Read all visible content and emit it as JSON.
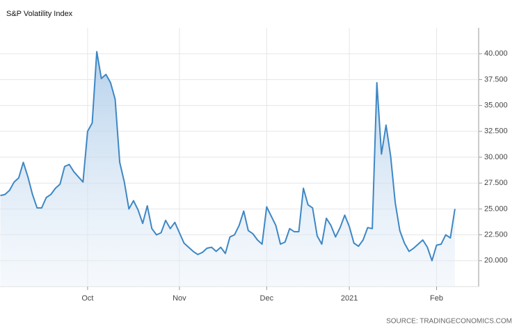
{
  "chart_data": {
    "type": "line",
    "title": "S&P Volatility Index",
    "source": "SOURCE: TRADINGECONOMICS.COM",
    "categories": [
      null,
      null,
      null,
      null,
      null,
      null,
      null,
      null,
      null,
      null,
      null,
      null,
      null,
      null,
      null,
      null,
      null,
      null,
      null,
      "Oct",
      null,
      null,
      null,
      null,
      null,
      null,
      null,
      null,
      null,
      null,
      null,
      null,
      null,
      null,
      null,
      null,
      null,
      null,
      null,
      "Nov",
      null,
      null,
      null,
      null,
      null,
      null,
      null,
      null,
      null,
      null,
      null,
      null,
      null,
      null,
      null,
      null,
      null,
      null,
      "Dec",
      null,
      null,
      null,
      null,
      null,
      null,
      null,
      null,
      null,
      null,
      null,
      null,
      null,
      null,
      null,
      null,
      null,
      "2021",
      null,
      null,
      null,
      null,
      null,
      null,
      null,
      null,
      null,
      null,
      null,
      null,
      null,
      null,
      null,
      null,
      null,
      null,
      "Feb",
      null,
      null,
      null,
      null
    ],
    "series": [
      {
        "color": "#3d87c4",
        "values": [
          26.3,
          26.4,
          26.8,
          27.6,
          28.0,
          29.5,
          28.1,
          26.4,
          25.1,
          25.1,
          26.1,
          26.4,
          27.0,
          27.4,
          29.1,
          29.3,
          28.6,
          28.1,
          27.6,
          32.5,
          33.3,
          40.2,
          37.6,
          38.0,
          37.2,
          35.6,
          29.5,
          27.6,
          25.0,
          25.8,
          24.9,
          23.6,
          25.3,
          23.1,
          22.5,
          22.7,
          23.9,
          23.1,
          23.7,
          22.7,
          21.7,
          21.3,
          20.9,
          20.6,
          20.8,
          21.2,
          21.3,
          20.9,
          21.3,
          20.7,
          22.3,
          22.5,
          23.4,
          24.8,
          22.9,
          22.6,
          22.0,
          21.6,
          25.2,
          24.3,
          23.4,
          21.6,
          21.8,
          23.1,
          22.8,
          22.8,
          27.0,
          25.4,
          25.1,
          22.4,
          21.6,
          24.1,
          23.4,
          22.3,
          23.2,
          24.4,
          23.3,
          21.7,
          21.4,
          22.0,
          23.2,
          23.1,
          37.2,
          30.3,
          33.1,
          30.1,
          25.6,
          22.9,
          21.7,
          20.9,
          21.2,
          21.6,
          22.0,
          21.3,
          20.0,
          21.5,
          21.6,
          22.5,
          22.2,
          25.0
        ]
      }
    ],
    "ylim": [
      17.5,
      42.5
    ],
    "yticks": [
      {
        "value": 20,
        "label": "20.000"
      },
      {
        "value": 22.5,
        "label": "22.500"
      },
      {
        "value": 25,
        "label": "25.000"
      },
      {
        "value": 27.5,
        "label": "27.500"
      },
      {
        "value": 30,
        "label": "30.000"
      },
      {
        "value": 32.5,
        "label": "32.500"
      },
      {
        "value": 35,
        "label": "35.000"
      },
      {
        "value": 37.5,
        "label": "37.500"
      },
      {
        "value": 40,
        "label": "40.000"
      }
    ],
    "grid": true
  }
}
